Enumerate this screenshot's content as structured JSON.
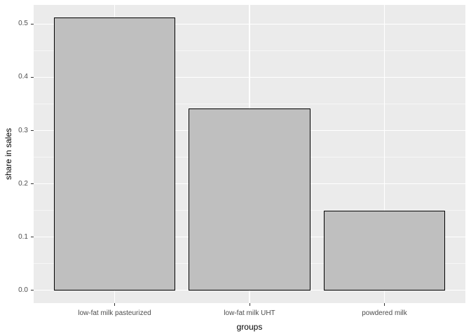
{
  "chart_data": {
    "type": "bar",
    "categories": [
      "low-fat milk pasteurized",
      "low-fat milk UHT",
      "powdered milk"
    ],
    "values": [
      0.512,
      0.341,
      0.149
    ],
    "xlabel": "groups",
    "ylabel": "share in sales",
    "ylim": [
      -0.024,
      0.536
    ],
    "y_major_ticks": [
      0,
      0.1,
      0.2,
      0.3,
      0.4,
      0.5
    ],
    "y_tick_labels": [
      "0.0",
      "0.1",
      "0.2",
      "0.3",
      "0.4",
      "0.5"
    ],
    "y_minor_ticks": [
      0.05,
      0.15,
      0.25,
      0.35,
      0.45
    ],
    "grid": "horizontal major+minor, vertical major at category centers",
    "legend_position": "none",
    "theme": "ggplot-gray",
    "colors": {
      "outer_bg": "#ffffff",
      "panel_bg": "#ebebeb",
      "grid_major": "#ffffff",
      "grid_minor": "#f6f6f6",
      "bar_fill": "#bfbfbf",
      "bar_border": "#000000",
      "tick_label": "#4d4d4d",
      "axis_title": "#000000",
      "tick_mark": "#333333"
    }
  }
}
